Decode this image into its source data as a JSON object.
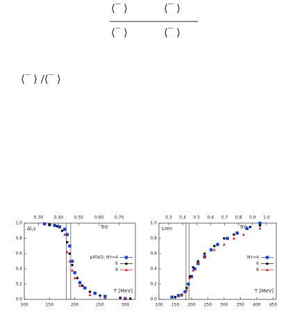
{
  "equations": {
    "numerator": [
      "⟨‾ ⟩",
      "⟨‾ ⟩"
    ],
    "denominator": [
      "⟨‾ ⟩",
      "⟨‾ ⟩"
    ],
    "ratio": "⟨‾ ⟩ /⟨‾ ⟩"
  },
  "chart_data": [
    {
      "type": "scatter",
      "annotation": "Δl,s",
      "top_axis_label": "Tr0",
      "xlabel": "T [MeV]",
      "xlim": [
        100,
        320
      ],
      "xticks": [
        100,
        150,
        200,
        250,
        300
      ],
      "x2lim": [
        0.23,
        0.78
      ],
      "x2ticks": [
        {
          "value": 0.3,
          "label": "0.30"
        },
        {
          "value": 0.4,
          "label": "0.40"
        },
        {
          "value": 0.5,
          "label": "0.50"
        },
        {
          "value": 0.6,
          "label": "0.60"
        },
        {
          "value": 0.7,
          "label": "0.70"
        }
      ],
      "ylim": [
        0,
        1
      ],
      "yticks": [
        {
          "value": 0,
          "label": "0.0"
        },
        0.2,
        0.4,
        0.6,
        0.8,
        {
          "value": 1,
          "label": "1.0"
        }
      ],
      "vlines": [
        183,
        192
      ],
      "legend": "right",
      "series": [
        {
          "name": "p4fat3: Nτ=4",
          "color": "#1a3fd0",
          "marker": "square",
          "x": [
            140,
            150,
            160,
            170,
            180,
            185,
            190,
            195,
            200,
            210,
            220,
            240,
            260,
            300
          ],
          "values": [
            0.99,
            0.98,
            0.97,
            0.95,
            0.92,
            0.85,
            0.7,
            0.5,
            0.35,
            0.22,
            0.15,
            0.08,
            0.04,
            0.01
          ]
        },
        {
          "name": "6",
          "color": "#111111",
          "marker": "circle",
          "x": [
            150,
            165,
            175,
            185,
            190,
            195,
            205,
            215,
            230,
            250,
            290,
            310
          ],
          "values": [
            0.98,
            0.96,
            0.9,
            0.75,
            0.6,
            0.45,
            0.28,
            0.18,
            0.1,
            0.05,
            0.02,
            0.01
          ]
        },
        {
          "name": "8",
          "color": "#e02020",
          "marker": "triangle",
          "x": [
            180,
            185,
            190,
            195,
            200,
            210,
            230,
            260,
            300
          ],
          "values": [
            0.85,
            0.62,
            0.5,
            0.38,
            0.28,
            0.18,
            0.06,
            0.02,
            0.01
          ]
        }
      ]
    },
    {
      "type": "scatter",
      "annotation": "Lren",
      "top_axis_label": "Tr0",
      "xlabel": "T [MeV]",
      "xlim": [
        100,
        460
      ],
      "xticks": [
        100,
        150,
        200,
        250,
        300,
        350,
        400,
        450
      ],
      "x2lim": [
        0.23,
        1.07
      ],
      "x2ticks": [
        0.3,
        0.4,
        0.5,
        0.6,
        0.7,
        0.8,
        0.9,
        {
          "value": 1,
          "label": "1.0"
        }
      ],
      "ylim": [
        0,
        1
      ],
      "yticks": [
        {
          "value": 0,
          "label": "0.0"
        },
        0.2,
        0.4,
        0.6,
        0.8,
        {
          "value": 1,
          "label": "1.0"
        }
      ],
      "vlines": [
        183,
        192
      ],
      "legend": "right",
      "series": [
        {
          "name": "Nτ=4",
          "color": "#1a3fd0",
          "marker": "square",
          "x": [
            140,
            160,
            180,
            190,
            200,
            210,
            220,
            240,
            260,
            280,
            310,
            340,
            370,
            410
          ],
          "values": [
            0.03,
            0.05,
            0.1,
            0.2,
            0.3,
            0.4,
            0.47,
            0.56,
            0.65,
            0.72,
            0.8,
            0.87,
            0.93,
            1.0
          ]
        },
        {
          "name": "6",
          "color": "#111111",
          "marker": "circle",
          "x": [
            150,
            170,
            185,
            195,
            205,
            220,
            240,
            270,
            300,
            330,
            380,
            410
          ],
          "values": [
            0.03,
            0.06,
            0.15,
            0.3,
            0.42,
            0.5,
            0.6,
            0.7,
            0.8,
            0.85,
            0.95,
            0.97
          ]
        },
        {
          "name": "8",
          "color": "#e02020",
          "marker": "triangle",
          "x": [
            170,
            185,
            195,
            205,
            220,
            240,
            270,
            300,
            330,
            360,
            410
          ],
          "values": [
            0.05,
            0.12,
            0.28,
            0.38,
            0.48,
            0.55,
            0.65,
            0.72,
            0.8,
            0.85,
            0.93
          ]
        }
      ]
    }
  ]
}
